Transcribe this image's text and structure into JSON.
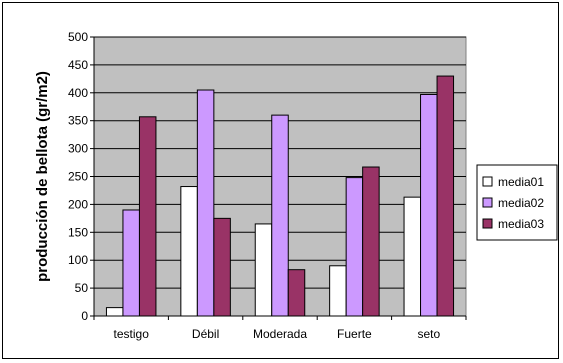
{
  "chart_data": {
    "type": "bar",
    "title": "",
    "xlabel": "",
    "ylabel": "producción de bellota (gr/m2)",
    "categories": [
      "testigo",
      "Débil",
      "Moderada",
      "Fuerte",
      "seto"
    ],
    "series": [
      {
        "name": "media01",
        "color": "#ffffff",
        "values": [
          15,
          232,
          165,
          90,
          213
        ]
      },
      {
        "name": "media02",
        "color": "#cc99ff",
        "values": [
          190,
          405,
          360,
          248,
          397
        ]
      },
      {
        "name": "media03",
        "color": "#993366",
        "values": [
          357,
          175,
          83,
          267,
          430
        ]
      }
    ],
    "ylim": [
      0,
      500
    ],
    "yticks": [
      0,
      50,
      100,
      150,
      200,
      250,
      300,
      350,
      400,
      450,
      500
    ],
    "grid": true,
    "plot_background": "#c0c0c0",
    "legend_position": "right"
  }
}
